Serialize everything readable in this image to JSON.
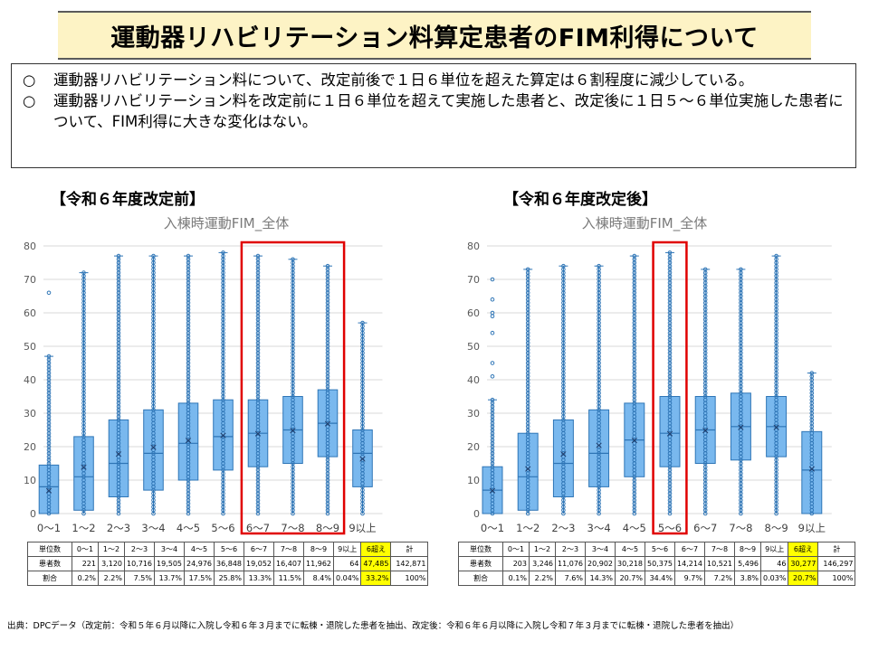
{
  "title": "運動器リハビリテーション料算定患者のFIM利得について",
  "bullets": [
    {
      "mark": "○",
      "text": "運動器リハビリテーション料について、改定前後で１日６単位を超えた算定は６割程度に減少している。"
    },
    {
      "mark": "○",
      "text": "運動器リハビリテーション料を改定前に１日６単位を超えて実施した患者と、改定後に１日５～６単位実施した患者について、FIM利得に大きな変化はない。"
    }
  ],
  "panels": [
    {
      "heading": "【令和６年度改定前】",
      "chart_title": "入棟時運動FIM_全体",
      "table": {
        "row_labels": [
          "単位数",
          "患者数",
          "割合"
        ],
        "headers": [
          "0～1",
          "1～2",
          "2～3",
          "3～4",
          "4～5",
          "5～6",
          "6～7",
          "7～8",
          "8～9",
          "9以上",
          "6超え",
          "計"
        ],
        "counts": [
          "221",
          "3,120",
          "10,716",
          "19,505",
          "24,976",
          "36,848",
          "19,052",
          "16,407",
          "11,962",
          "64",
          "47,485",
          "142,871"
        ],
        "ratios": [
          "0.2%",
          "2.2%",
          "7.5%",
          "13.7%",
          "17.5%",
          "25.8%",
          "13.3%",
          "11.5%",
          "8.4%",
          "0.04%",
          "33.2%",
          "100%"
        ],
        "highlight_col": 10
      }
    },
    {
      "heading": "【令和６年度改定後】",
      "chart_title": "入棟時運動FIM_全体",
      "table": {
        "row_labels": [
          "単位数",
          "患者数",
          "割合"
        ],
        "headers": [
          "0～1",
          "1～2",
          "2～3",
          "3～4",
          "4～5",
          "5～6",
          "6～7",
          "7～8",
          "8～9",
          "9以上",
          "6超え",
          "計"
        ],
        "counts": [
          "203",
          "3,246",
          "11,076",
          "20,902",
          "30,218",
          "50,375",
          "14,214",
          "10,521",
          "5,496",
          "46",
          "30,277",
          "146,297"
        ],
        "ratios": [
          "0.1%",
          "2.2%",
          "7.6%",
          "14.3%",
          "20.7%",
          "34.4%",
          "9.7%",
          "7.2%",
          "3.8%",
          "0.03%",
          "20.7%",
          "100%"
        ],
        "highlight_col": 10
      }
    }
  ],
  "source": "出典：DPCデータ（改定前：令和５年６月以降に入院し令和６年３月までに転棟・退院した患者を抽出、改定後：令和６年６月以降に入院し令和７年３月までに転棟・退院した患者を抽出）",
  "colors": {
    "box_fill": "#79b8ee",
    "box_stroke": "#2e75b6",
    "dot": "#2e75b6",
    "highlight_frame": "#e00000",
    "grid": "#d9d9d9",
    "table_highlight": "#ffff00"
  },
  "chart_data": [
    {
      "type": "box",
      "title": "入棟時運動FIM_全体",
      "categories": [
        "0～1",
        "1～2",
        "2～3",
        "3～4",
        "4～5",
        "5～6",
        "6～7",
        "7～8",
        "8～9",
        "9以上"
      ],
      "ylim": [
        0,
        80
      ],
      "yticks": [
        0,
        10,
        20,
        30,
        40,
        50,
        60,
        70,
        80
      ],
      "grid": true,
      "boxes": [
        {
          "q1": 0,
          "median": 8,
          "q3": 14.5,
          "mean": 7,
          "min": 0,
          "max": 47,
          "outliers": [
            66
          ]
        },
        {
          "q1": 1,
          "median": 11,
          "q3": 23,
          "mean": 14,
          "min": 0,
          "max": 72,
          "outliers": []
        },
        {
          "q1": 5,
          "median": 15,
          "q3": 28,
          "mean": 18,
          "min": 0,
          "max": 77,
          "outliers": []
        },
        {
          "q1": 7,
          "median": 18,
          "q3": 31,
          "mean": 20,
          "min": 0,
          "max": 77,
          "outliers": []
        },
        {
          "q1": 10,
          "median": 21,
          "q3": 33,
          "mean": 22,
          "min": 0,
          "max": 77,
          "outliers": []
        },
        {
          "q1": 13,
          "median": 23,
          "q3": 34,
          "mean": 23.5,
          "min": 0,
          "max": 78,
          "outliers": []
        },
        {
          "q1": 14,
          "median": 24,
          "q3": 34,
          "mean": 24,
          "min": 0,
          "max": 77,
          "outliers": []
        },
        {
          "q1": 15,
          "median": 25,
          "q3": 35,
          "mean": 25,
          "min": 0,
          "max": 76,
          "outliers": []
        },
        {
          "q1": 17,
          "median": 27,
          "q3": 37,
          "mean": 27,
          "min": 0,
          "max": 74,
          "outliers": []
        },
        {
          "q1": 8,
          "median": 18,
          "q3": 25,
          "mean": 16.5,
          "min": 0,
          "max": 57,
          "outliers": []
        }
      ],
      "highlight_categories": [
        "6～7",
        "7～8",
        "8～9"
      ]
    },
    {
      "type": "box",
      "title": "入棟時運動FIM_全体",
      "categories": [
        "0～1",
        "1～2",
        "2～3",
        "3～4",
        "4～5",
        "5～6",
        "6～7",
        "7～8",
        "8～9",
        "9以上"
      ],
      "ylim": [
        0,
        80
      ],
      "yticks": [
        0,
        10,
        20,
        30,
        40,
        50,
        60,
        70,
        80
      ],
      "grid": true,
      "boxes": [
        {
          "q1": 0,
          "median": 7,
          "q3": 14,
          "mean": 7,
          "min": 0,
          "max": 34,
          "outliers": [
            41,
            45,
            54,
            59,
            60,
            64,
            70
          ]
        },
        {
          "q1": 1,
          "median": 11,
          "q3": 24,
          "mean": 13.5,
          "min": 0,
          "max": 73,
          "outliers": []
        },
        {
          "q1": 5,
          "median": 15,
          "q3": 28,
          "mean": 18,
          "min": 0,
          "max": 74,
          "outliers": []
        },
        {
          "q1": 8,
          "median": 18,
          "q3": 31,
          "mean": 20.5,
          "min": 0,
          "max": 74,
          "outliers": []
        },
        {
          "q1": 11,
          "median": 22,
          "q3": 33,
          "mean": 22,
          "min": 0,
          "max": 77,
          "outliers": []
        },
        {
          "q1": 14,
          "median": 24,
          "q3": 35,
          "mean": 24,
          "min": 0,
          "max": 78,
          "outliers": []
        },
        {
          "q1": 15,
          "median": 25,
          "q3": 35,
          "mean": 25,
          "min": 0,
          "max": 73,
          "outliers": []
        },
        {
          "q1": 16,
          "median": 26,
          "q3": 36,
          "mean": 26,
          "min": 0,
          "max": 73,
          "outliers": []
        },
        {
          "q1": 17,
          "median": 26,
          "q3": 35,
          "mean": 26,
          "min": 0,
          "max": 77,
          "outliers": []
        },
        {
          "q1": 0,
          "median": 13,
          "q3": 24.5,
          "mean": 13.5,
          "min": 0,
          "max": 42,
          "outliers": []
        }
      ],
      "highlight_categories": [
        "5～6"
      ]
    }
  ]
}
